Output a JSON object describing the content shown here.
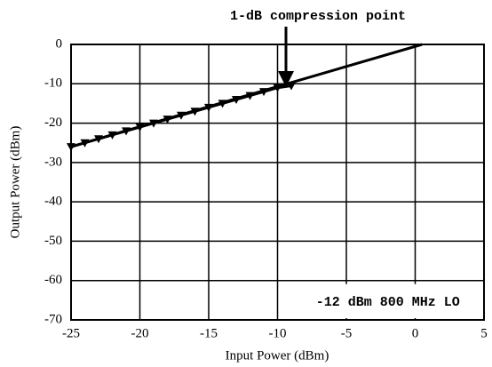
{
  "chart_data": {
    "type": "line",
    "xlabel": "Input Power (dBm)",
    "ylabel": "Output Power (dBm)",
    "annotations": [
      "1-dB compression point",
      "-12 dBm 800 MHz LO"
    ],
    "xlim": [
      -25,
      5
    ],
    "xticks": [
      -25,
      -20,
      -15,
      -10,
      -5,
      0,
      5
    ],
    "ylim": [
      -70,
      0
    ],
    "yticks": [
      -70,
      -60,
      -50,
      -40,
      -30,
      -20,
      -10,
      0
    ],
    "grid": true,
    "series": [
      {
        "color": "#000000",
        "marker": "none",
        "x": [
          -25,
          0.5
        ],
        "values": [
          -26,
          0
        ]
      },
      {
        "color": "#000000",
        "marker": "triangle-down",
        "x": [
          -25,
          -24,
          -23,
          -22,
          -21,
          -20,
          -19,
          -18,
          -17,
          -16,
          -15,
          -14,
          -13,
          -12,
          -11,
          -10,
          -9
        ],
        "values": [
          -26,
          -25,
          -24,
          -23,
          -22,
          -21,
          -20,
          -19,
          -18,
          -17,
          -16,
          -15,
          -14,
          -13,
          -12,
          -11,
          -10.5
        ]
      }
    ]
  }
}
